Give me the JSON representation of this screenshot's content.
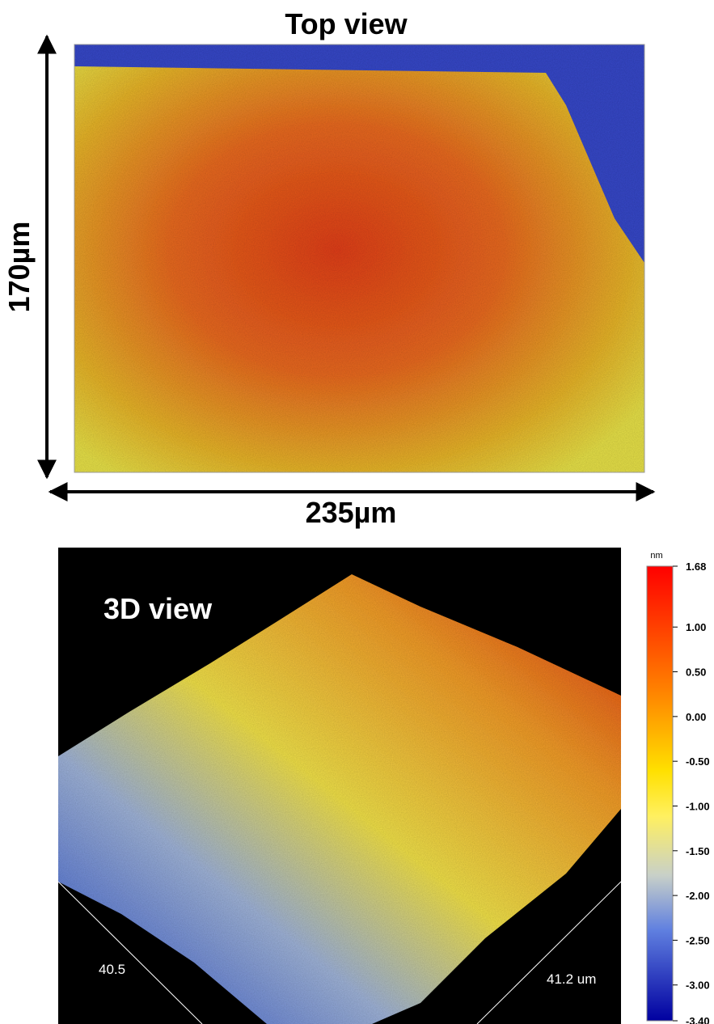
{
  "top_view": {
    "title": "Top view",
    "height_label": "170µm",
    "width_label": "235µm"
  },
  "view_3d": {
    "title": "3D view",
    "x_label": "40.5",
    "y_label": "41.2 um",
    "colorbar": {
      "unit": "nm",
      "range": [
        -3.4,
        1.68
      ],
      "ticks": [
        1.68,
        {
          "value": 1,
          "label": "1.00"
        },
        {
          "value": 0.5,
          "label": "0.50"
        },
        {
          "value": 0,
          "label": "0.00"
        },
        {
          "value": -0.5,
          "label": "-0.50"
        },
        {
          "value": -1,
          "label": "-1.00"
        },
        {
          "value": -1.5,
          "label": "-1.50"
        },
        {
          "value": -2,
          "label": "-2.00"
        },
        {
          "value": -2.5,
          "label": "-2.50"
        },
        {
          "value": -3,
          "label": "-3.00"
        },
        {
          "value": -3.4,
          "label": "-3.40"
        }
      ]
    }
  }
}
